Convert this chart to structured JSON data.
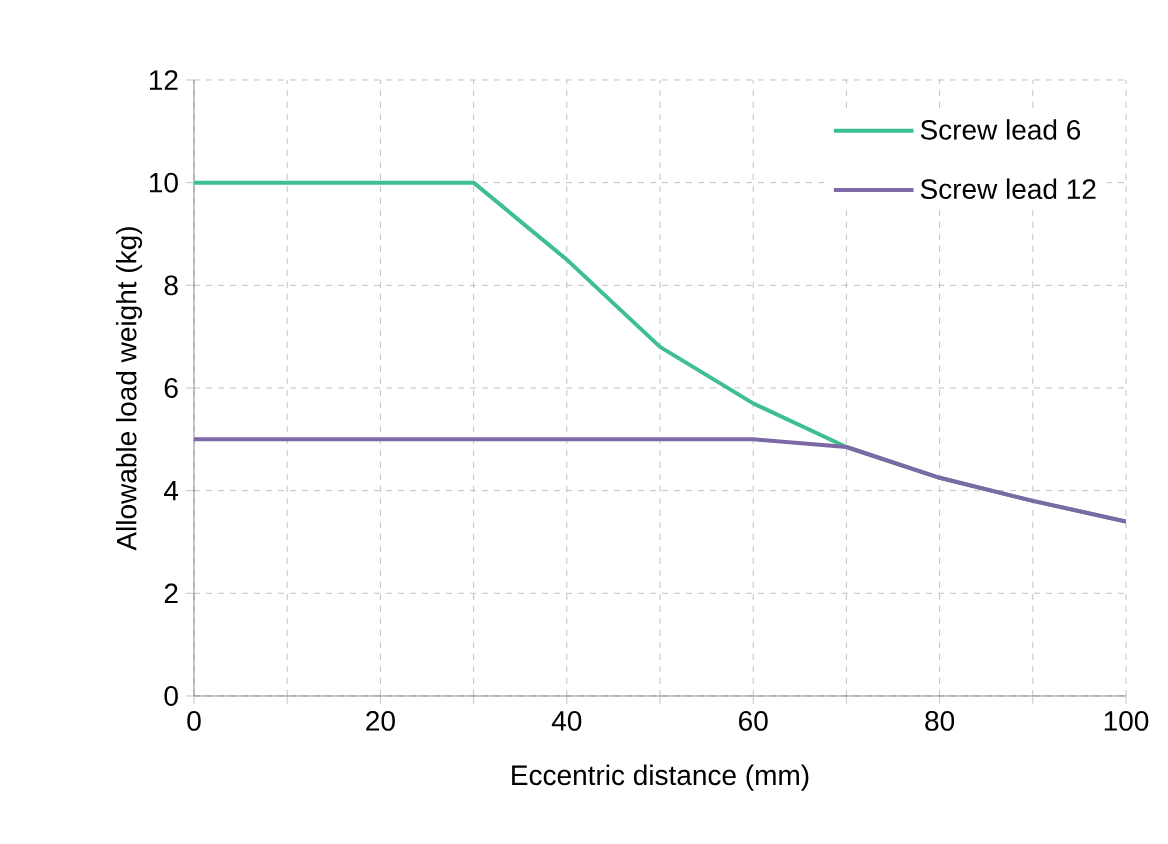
{
  "chart_data": {
    "type": "line",
    "xlabel": "Eccentric distance (mm)",
    "ylabel": "Allowable load weight (kg)",
    "x": [
      0,
      10,
      20,
      30,
      40,
      50,
      60,
      70,
      80,
      90,
      100
    ],
    "series": [
      {
        "name": "Screw lead 6",
        "color": "#3dbf8f",
        "values": [
          10,
          10,
          10,
          10,
          8.5,
          6.8,
          5.7,
          4.85,
          4.25,
          3.8,
          3.4
        ]
      },
      {
        "name": "Screw lead 12",
        "color": "#7b6aa6",
        "values": [
          5,
          5,
          5,
          5,
          5,
          5,
          5,
          4.85,
          4.25,
          3.8,
          3.4
        ]
      }
    ],
    "xlim": [
      0,
      100
    ],
    "ylim": [
      0,
      12
    ],
    "xticks": [
      0,
      {
        "value": 10,
        "label": null
      },
      20,
      {
        "value": 30,
        "label": null
      },
      40,
      {
        "value": 50,
        "label": null
      },
      60,
      {
        "value": 70,
        "label": null
      },
      80,
      {
        "value": 90,
        "label": null
      },
      100
    ],
    "yticks": [
      0,
      2,
      4,
      6,
      8,
      10,
      12
    ],
    "grid": true,
    "legend": "top right",
    "marker": "none",
    "line_style": "solid"
  }
}
